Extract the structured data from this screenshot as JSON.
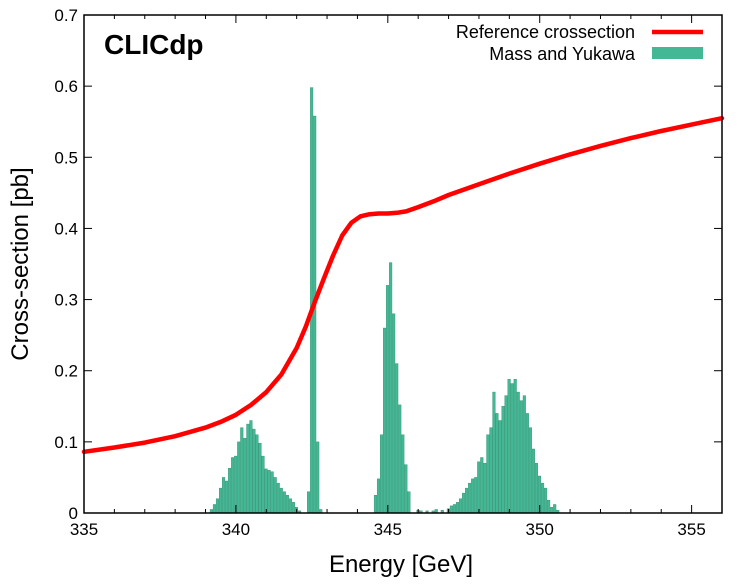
{
  "chart_data": {
    "type": "bar",
    "title": "",
    "logo": "CLICdp",
    "xlabel": "Energy [GeV]",
    "ylabel": "Cross-section [pb]",
    "xlim": [
      335,
      356
    ],
    "ylim": [
      0,
      0.7
    ],
    "xticks": [
      335,
      340,
      345,
      350,
      355
    ],
    "yticks": [
      0,
      0.1,
      0.2,
      0.3,
      0.4,
      0.5,
      0.6,
      0.7
    ],
    "ytick_labels": [
      "0",
      "0.1",
      "0.2",
      "0.3",
      "0.4",
      "0.5",
      "0.6",
      "0.7"
    ],
    "legend_position": "top-right",
    "colors": {
      "curve": "#ff0000",
      "bars": "#44b894",
      "bar_edge": "#2f8f70"
    },
    "series": [
      {
        "name": "Reference crossection",
        "kind": "line",
        "x": [
          335,
          336,
          337,
          338,
          339,
          339.5,
          340,
          340.5,
          341,
          341.5,
          342,
          342.3,
          342.6,
          342.9,
          343.2,
          343.5,
          343.8,
          344.1,
          344.4,
          344.7,
          345,
          345.3,
          345.6,
          346,
          346.5,
          347,
          348,
          349,
          350,
          351,
          352,
          353,
          354,
          355,
          356
        ],
        "values": [
          0.086,
          0.092,
          0.099,
          0.108,
          0.12,
          0.128,
          0.138,
          0.152,
          0.17,
          0.195,
          0.232,
          0.262,
          0.297,
          0.33,
          0.362,
          0.39,
          0.408,
          0.417,
          0.42,
          0.421,
          0.421,
          0.422,
          0.424,
          0.43,
          0.438,
          0.447,
          0.462,
          0.477,
          0.491,
          0.504,
          0.516,
          0.527,
          0.537,
          0.546,
          0.555
        ]
      },
      {
        "name": "Mass and Yukawa",
        "kind": "bar",
        "bin_width": 0.1,
        "x": [
          339.2,
          339.3,
          339.4,
          339.5,
          339.6,
          339.7,
          339.8,
          339.9,
          340.0,
          340.1,
          340.2,
          340.3,
          340.4,
          340.5,
          340.6,
          340.7,
          340.8,
          340.9,
          341.0,
          341.1,
          341.2,
          341.3,
          341.4,
          341.5,
          341.6,
          341.7,
          341.8,
          341.9,
          342.0,
          342.1,
          342.4,
          342.5,
          342.6,
          342.7,
          342.8,
          344.6,
          344.7,
          344.8,
          344.9,
          345.0,
          345.1,
          345.2,
          345.3,
          345.4,
          345.5,
          345.6,
          345.7,
          346.0,
          346.1,
          346.3,
          346.5,
          346.6,
          346.8,
          347.0,
          347.1,
          347.2,
          347.3,
          347.4,
          347.5,
          347.6,
          347.7,
          347.8,
          347.9,
          348.0,
          348.1,
          348.2,
          348.3,
          348.4,
          348.5,
          348.6,
          348.7,
          348.8,
          348.9,
          349.0,
          349.1,
          349.2,
          349.3,
          349.4,
          349.5,
          349.6,
          349.7,
          349.8,
          349.9,
          350.0,
          350.1,
          350.2,
          350.3,
          350.4,
          350.5,
          350.6
        ],
        "values": [
          0.005,
          0.012,
          0.02,
          0.035,
          0.05,
          0.045,
          0.063,
          0.078,
          0.08,
          0.1,
          0.12,
          0.105,
          0.125,
          0.13,
          0.118,
          0.11,
          0.098,
          0.08,
          0.062,
          0.06,
          0.058,
          0.05,
          0.042,
          0.035,
          0.03,
          0.025,
          0.02,
          0.015,
          0.008,
          0.003,
          0.03,
          0.598,
          0.558,
          0.1,
          0.005,
          0.025,
          0.048,
          0.11,
          0.26,
          0.32,
          0.352,
          0.28,
          0.21,
          0.152,
          0.11,
          0.068,
          0.03,
          0.004,
          0.003,
          0.003,
          0.003,
          0.005,
          0.004,
          0.006,
          0.01,
          0.012,
          0.015,
          0.02,
          0.028,
          0.035,
          0.042,
          0.048,
          0.05,
          0.072,
          0.078,
          0.07,
          0.11,
          0.12,
          0.17,
          0.14,
          0.13,
          0.15,
          0.165,
          0.188,
          0.182,
          0.188,
          0.17,
          0.158,
          0.165,
          0.14,
          0.12,
          0.09,
          0.07,
          0.052,
          0.042,
          0.035,
          0.018,
          0.008,
          0.012,
          0.004
        ]
      }
    ]
  }
}
